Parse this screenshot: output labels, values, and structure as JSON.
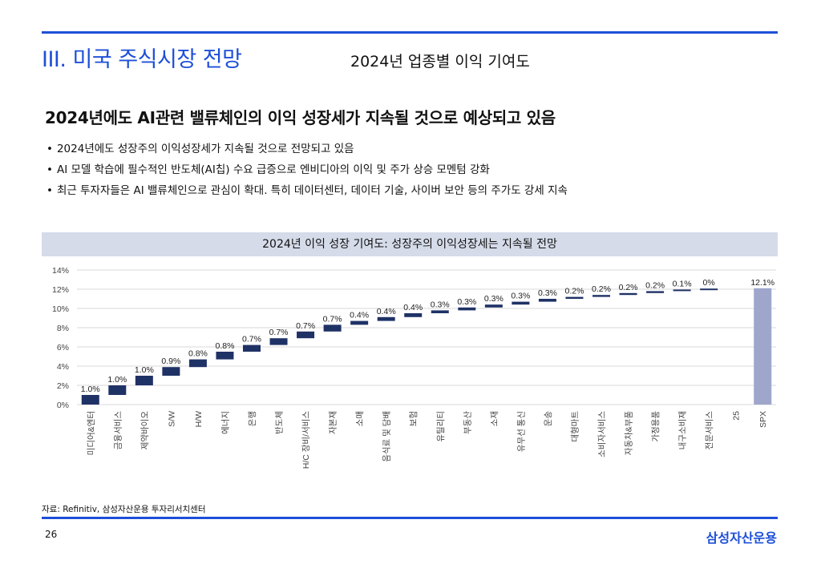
{
  "header": {
    "section_title": "III. 미국 주식시장 전망",
    "slide_title": "2024년 업종별 이익 기여도"
  },
  "headline": "2024년에도 AI관련 밸류체인의 이익 성장세가 지속될 것으로 예상되고 있음",
  "bullets": [
    "2024년에도 성장주의 이익성장세가 지속될 것으로 전망되고 있음",
    "AI 모델 학습에 필수적인 반도체(AI칩) 수요 급증으로 엔비디아의 이익 및 주가 상승 모멘텀 강화",
    "최근 투자자들은 AI 밸류체인으로 관심이 확대. 특히 데이터센터, 데이터 기술, 사이버 보안 등의 주가도 강세 지속"
  ],
  "chart_header": "2024년 이익 성장 기여도: 성장주의 이익성장세는 지속될 전망",
  "chart_data": {
    "type": "waterfall",
    "title": "2024년 이익 성장 기여도: 성장주의 이익성장세는 지속될 전망",
    "ylim": [
      0,
      14
    ],
    "yticks": [
      0,
      2,
      4,
      6,
      8,
      10,
      12,
      14
    ],
    "ytick_labels": [
      "0%",
      "2%",
      "4%",
      "6%",
      "8%",
      "10%",
      "12%",
      "14%"
    ],
    "categories": [
      "미디어&엔터",
      "금융서비스",
      "제약바이오",
      "S/W",
      "H/W",
      "에너지",
      "은행",
      "반도체",
      "H/C 장비/서비스",
      "자본재",
      "소매",
      "음식료 및 담배",
      "보험",
      "유틸리티",
      "부동산",
      "소재",
      "유무선 통신",
      "운송",
      "대형마트",
      "소비자서비스",
      "자동차&부품",
      "가정용품",
      "내구소비재",
      "전문서비스",
      "25",
      "SPX"
    ],
    "values": [
      1.0,
      1.0,
      1.0,
      0.9,
      0.8,
      0.8,
      0.7,
      0.7,
      0.7,
      0.7,
      0.4,
      0.4,
      0.4,
      0.3,
      0.3,
      0.3,
      0.3,
      0.3,
      0.2,
      0.2,
      0.2,
      0.2,
      0.1,
      0.0,
      null,
      12.1
    ],
    "labels": [
      "1.0%",
      "1.0%",
      "1.0%",
      "0.9%",
      "0.8%",
      "0.8%",
      "0.7%",
      "0.7%",
      "0.7%",
      "0.7%",
      "0.4%",
      "0.4%",
      "0.4%",
      "0.3%",
      "0.3%",
      "0.3%",
      "0.3%",
      "0.3%",
      "0.2%",
      "0.2%",
      "0.2%",
      "0.2%",
      "0.1%",
      "0%",
      "",
      "12.1%"
    ],
    "total_index": 25,
    "colors": {
      "bar": "#1f3266",
      "total": "#9ea6cb",
      "grid": "#d9d9d9"
    }
  },
  "footer": {
    "source": "자료: Refinitiv, 삼성자산운용 투자리서치센터",
    "page_number": "26",
    "brand": "삼성자산운용"
  }
}
